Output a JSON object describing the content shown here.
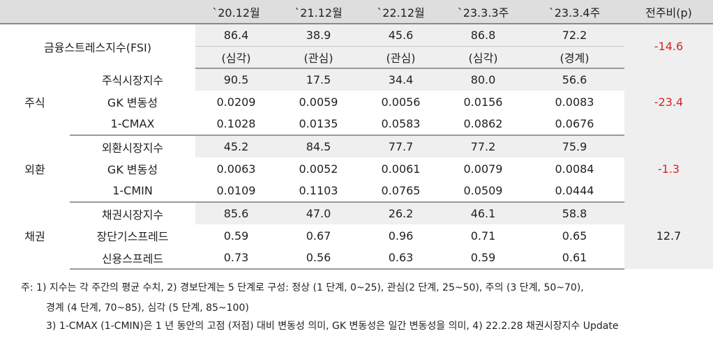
{
  "header": {
    "blank": "",
    "cols": [
      "`20.12월",
      "`21.12월",
      "`22.12월",
      "`23.3.3주",
      "`23.3.4주"
    ],
    "change": "전주비(p)"
  },
  "fsi": {
    "label": "금융스트레스지수(FSI)",
    "values": [
      "86.4",
      "38.9",
      "45.6",
      "86.8",
      "72.2"
    ],
    "levels": [
      "(심각)",
      "(관심)",
      "(관심)",
      "(심각)",
      "(경계)"
    ],
    "change": "-14.6"
  },
  "groups": [
    {
      "name": "주식",
      "change": "-23.4",
      "rows": [
        {
          "label": "주식시장지수",
          "values": [
            "90.5",
            "17.5",
            "34.4",
            "80.0",
            "56.6"
          ]
        },
        {
          "label": "GK 변동성",
          "values": [
            "0.0209",
            "0.0059",
            "0.0056",
            "0.0156",
            "0.0083"
          ]
        },
        {
          "label": "1-CMAX",
          "values": [
            "0.1028",
            "0.0135",
            "0.0583",
            "0.0862",
            "0.0676"
          ]
        }
      ]
    },
    {
      "name": "외환",
      "change": "-1.3",
      "rows": [
        {
          "label": "외환시장지수",
          "values": [
            "45.2",
            "84.5",
            "77.7",
            "77.2",
            "75.9"
          ]
        },
        {
          "label": "GK 변동성",
          "values": [
            "0.0063",
            "0.0052",
            "0.0061",
            "0.0079",
            "0.0084"
          ]
        },
        {
          "label": "1-CMIN",
          "values": [
            "0.0109",
            "0.1103",
            "0.0765",
            "0.0509",
            "0.0444"
          ]
        }
      ]
    },
    {
      "name": "채권",
      "change": "12.7",
      "rows": [
        {
          "label": "채권시장지수",
          "values": [
            "85.6",
            "47.0",
            "26.2",
            "46.1",
            "58.8"
          ]
        },
        {
          "label": "장단기스프레드",
          "values": [
            "0.59",
            "0.67",
            "0.96",
            "0.71",
            "0.65"
          ]
        },
        {
          "label": "신용스프레드",
          "values": [
            "0.73",
            "0.56",
            "0.63",
            "0.59",
            "0.61"
          ]
        }
      ]
    }
  ],
  "notes": [
    "주: 1) 지수는 각 주간의 평균 수치, 2) 경보단계는 5 단계로 구성: 정상 (1 단계, 0~25), 관심(2 단계, 25~50), 주의 (3 단계, 50~70),",
    "경계 (4 단계, 70~85), 심각 (5 단계, 85~100)",
    "3) 1-CMAX (1-CMIN)은 1 년 동안의 고점 (저점) 대비 변동성 의미, GK 변동성은 일간 변동성을 의미, 4) 22.2.28 채권시장지수 Update"
  ],
  "colors": {
    "negative": "#d8232a",
    "header_bg": "#dedede",
    "shade_bg": "#efefef"
  }
}
